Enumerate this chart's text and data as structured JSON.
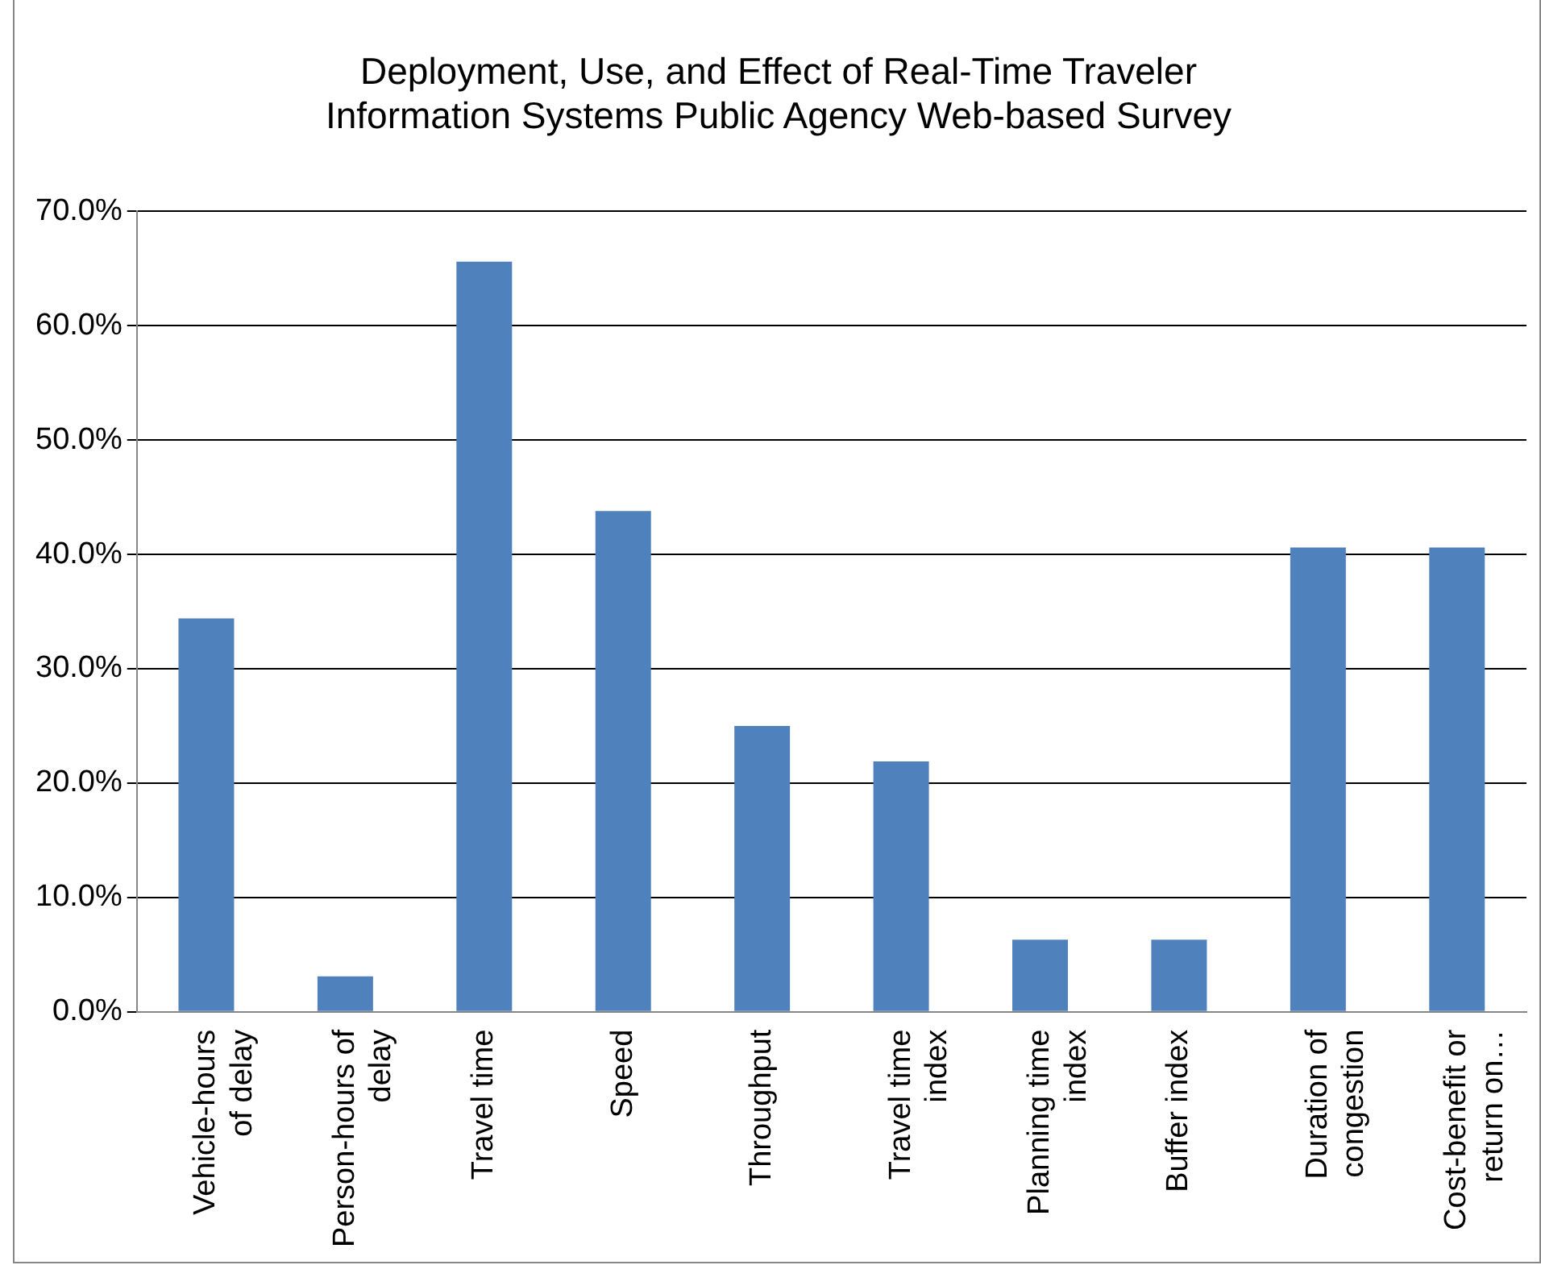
{
  "chart_data": {
    "type": "bar",
    "title": "Deployment, Use, and Effect of Real-Time Traveler Information Systems Public Agency Web-based Survey",
    "categories": [
      "Vehicle-hours of delay",
      "Person-hours of delay",
      "Travel time",
      "Speed",
      "Throughput",
      "Travel time index",
      "Planning time index",
      "Buffer index",
      "Duration of congestion",
      "Cost-benefit or return on…"
    ],
    "values": [
      34.4,
      3.1,
      65.6,
      43.8,
      25.0,
      21.9,
      6.3,
      6.3,
      40.6,
      40.6
    ],
    "color": "#4f81bd",
    "ylim": [
      0,
      70
    ],
    "yticks": [
      {
        "value": 0,
        "label": "0.0%"
      },
      {
        "value": 10,
        "label": "10.0%"
      },
      {
        "value": 20,
        "label": "20.0%"
      },
      {
        "value": 30,
        "label": "30.0%"
      },
      {
        "value": 40,
        "label": "40.0%"
      },
      {
        "value": 50,
        "label": "50.0%"
      },
      {
        "value": 60,
        "label": "60.0%"
      },
      {
        "value": 70,
        "label": "70.0%"
      }
    ],
    "grid": "y",
    "legend": false
  }
}
